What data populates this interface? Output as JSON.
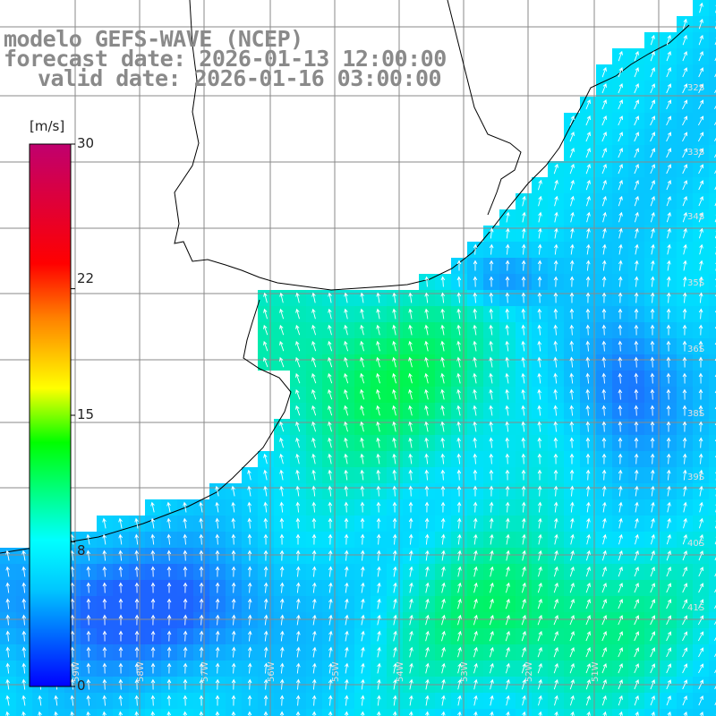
{
  "header": {
    "line1": "modelo GEFS-WAVE (NCEP)",
    "line2": "forecast date: 2026-01-13 12:00:00",
    "line3": "valid date: 2026-01-16 03:00:00"
  },
  "colorbar": {
    "unit": "[m/s]",
    "min": 0,
    "max": 30,
    "ticks": [
      "30",
      "22",
      "15",
      "8",
      "0"
    ],
    "tick_values": [
      30,
      22,
      15,
      8,
      0
    ],
    "colors": [
      "#0000ff",
      "#00c8ff",
      "#00ffff",
      "#00ff00",
      "#ffff00",
      "#ff8000",
      "#ff0000",
      "#c0006e"
    ]
  },
  "map": {
    "lat_labels": [
      "32S",
      "33S",
      "34S",
      "35S",
      "36S",
      "38S",
      "39S",
      "40S",
      "41S"
    ],
    "lon_labels": [
      "59W",
      "58W",
      "57W",
      "56W",
      "55W",
      "54W",
      "53W",
      "52W",
      "51W"
    ],
    "ocean_colors": {
      "low": "#1e64ff",
      "mid": "#00e1ff",
      "high": "#00ff00"
    },
    "land_color": "#ffffff",
    "grid_color": "#8a8a8a",
    "arrow_color": "#ffffff"
  }
}
